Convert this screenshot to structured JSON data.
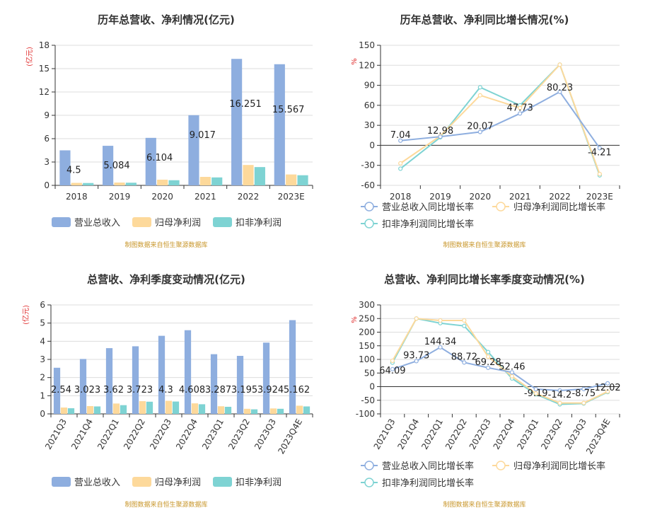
{
  "colors": {
    "revenue": "#8eaedf",
    "net_profit": "#fdd99b",
    "deducted_profit": "#7ed3d3",
    "grid": "#dddddd",
    "axis": "#333333"
  },
  "source_text": "制图数据来自恒生聚源数据库",
  "chart_data": [
    {
      "id": "annual-bar",
      "type": "bar",
      "title": "历年总营收、净利情况(亿元)",
      "ylabel": "(亿元)",
      "categories": [
        "2018",
        "2019",
        "2020",
        "2021",
        "2022",
        "2023E"
      ],
      "ylim": [
        0,
        18
      ],
      "yticks": [
        0,
        3,
        6,
        9,
        12,
        15,
        18
      ],
      "series": [
        {
          "name": "营业总收入",
          "values": [
            4.5,
            5.084,
            6.104,
            9.017,
            16.251,
            15.567
          ]
        },
        {
          "name": "归母净利润",
          "values": [
            0.32,
            0.36,
            0.73,
            1.09,
            2.62,
            1.4
          ]
        },
        {
          "name": "扣非净利润",
          "values": [
            0.3,
            0.34,
            0.66,
            1.02,
            2.35,
            1.3
          ]
        }
      ],
      "data_labels": [
        "4.5",
        "5.084",
        "6.104",
        "9.017",
        "16.251",
        "15.567"
      ],
      "grid": true,
      "legend": "bottom"
    },
    {
      "id": "annual-line",
      "type": "line",
      "title": "历年总营收、净利同比增长情况(%)",
      "ylabel": "%",
      "categories": [
        "2018",
        "2019",
        "2020",
        "2021",
        "2022",
        "2023E"
      ],
      "ylim": [
        -60,
        150
      ],
      "yticks": [
        -60,
        -30,
        0,
        30,
        60,
        90,
        120,
        150
      ],
      "series": [
        {
          "name": "营业总收入同比增长率",
          "values": [
            7.04,
            12.98,
            20.07,
            47.73,
            80.23,
            -4.21
          ]
        },
        {
          "name": "归母净利润同比增长率",
          "values": [
            -27,
            14,
            75,
            56,
            121,
            -43
          ]
        },
        {
          "name": "扣非净利润同比增长率",
          "values": [
            -35,
            12,
            87,
            60,
            121,
            -45
          ]
        }
      ],
      "data_labels": [
        "7.04",
        "12.98",
        "20.07",
        "47.73",
        "80.23",
        "-4.21"
      ],
      "grid": true,
      "legend": "bottom"
    },
    {
      "id": "quarter-bar",
      "type": "bar",
      "title": "总营收、净利季度变动情况(亿元)",
      "ylabel": "(亿元)",
      "categories": [
        "2021Q3",
        "2021Q4",
        "2022Q1",
        "2022Q2",
        "2022Q3",
        "2022Q4",
        "2023Q1",
        "2023Q2",
        "2023Q3",
        "2023Q4E"
      ],
      "ylim": [
        0,
        6
      ],
      "yticks": [
        0,
        1,
        2,
        3,
        4,
        5,
        6
      ],
      "series": [
        {
          "name": "营业总收入",
          "values": [
            2.54,
            3.023,
            3.62,
            3.723,
            4.3,
            4.608,
            3.287,
            3.195,
            3.924,
            5.162
          ]
        },
        {
          "name": "归母净利润",
          "values": [
            0.35,
            0.43,
            0.57,
            0.7,
            0.72,
            0.58,
            0.42,
            0.28,
            0.3,
            0.45
          ]
        },
        {
          "name": "扣非净利润",
          "values": [
            0.31,
            0.41,
            0.48,
            0.67,
            0.68,
            0.53,
            0.39,
            0.25,
            0.28,
            0.41
          ]
        }
      ],
      "data_labels": [
        "2.54",
        "3.023",
        "3.62",
        "3.723",
        "4.3",
        "4.608",
        "3.287",
        "3.195",
        "3.924",
        "5.162"
      ],
      "grid": true,
      "legend": "bottom"
    },
    {
      "id": "quarter-line",
      "type": "line",
      "title": "总营收、净利同比增长率季度变动情况(%)",
      "ylabel": "%",
      "categories": [
        "2021Q3",
        "2021Q4",
        "2022Q1",
        "2022Q2",
        "2022Q3",
        "2022Q4",
        "2023Q1",
        "2023Q2",
        "2023Q3",
        "2023Q4E"
      ],
      "ylim": [
        -100,
        300
      ],
      "yticks": [
        -100,
        -50,
        0,
        50,
        100,
        150,
        200,
        250,
        300
      ],
      "series": [
        {
          "name": "营业总收入同比增长率",
          "values": [
            64.09,
            93.73,
            144.34,
            88.72,
            69.28,
            52.46,
            -9.19,
            -14.2,
            -8.75,
            12.02
          ]
        },
        {
          "name": "归母净利润同比增长率",
          "values": [
            95,
            250,
            243,
            243,
            110,
            38,
            -25,
            -60,
            -60,
            -18
          ]
        },
        {
          "name": "扣非净利润同比增长率",
          "values": [
            88,
            250,
            233,
            223,
            127,
            30,
            -28,
            -65,
            -62,
            -20
          ]
        }
      ],
      "data_labels": [
        "64.09",
        "93.73",
        "144.34",
        "88.72",
        "69.28",
        "52.46",
        "-9.19",
        "-14.2",
        "-8.75",
        "12.02"
      ],
      "grid": true,
      "legend": "bottom"
    }
  ]
}
